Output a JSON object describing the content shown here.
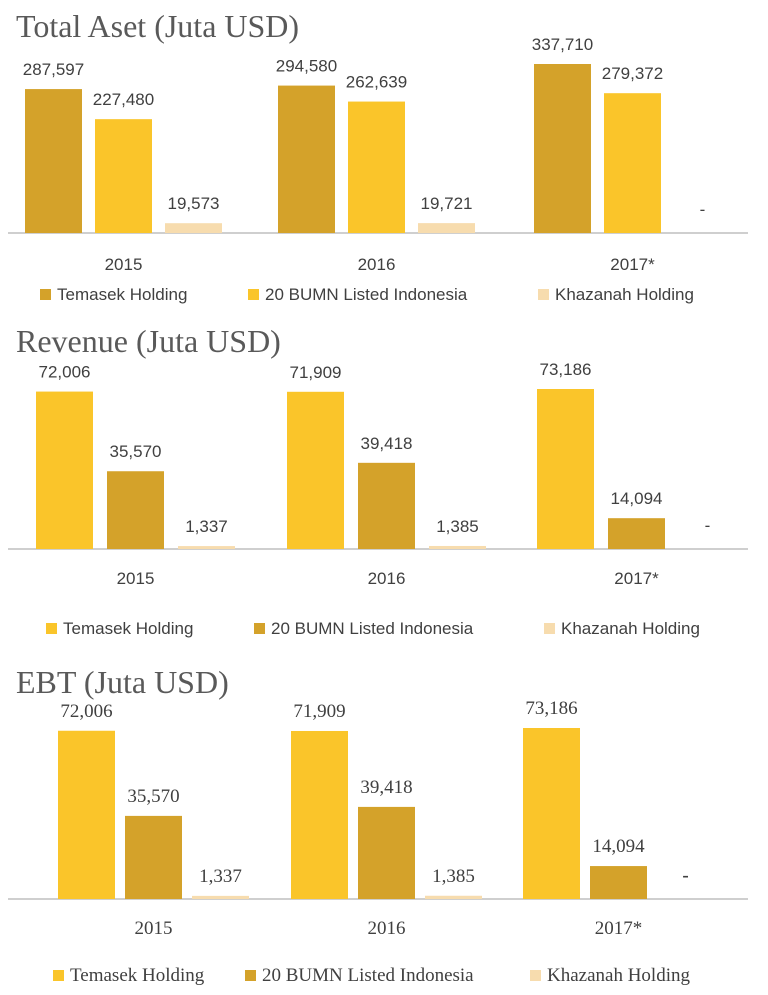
{
  "colors": {
    "temasek_panel1": "#d4a22a",
    "bumn_panel1": "#fac52a",
    "khazanah": "#f7dcae",
    "temasek_panel23": "#fac52a",
    "bumn_panel23": "#d4a22a"
  },
  "chart_data": [
    {
      "type": "bar",
      "title": "Total Aset (Juta USD)",
      "categories": [
        "2015",
        "2016",
        "2017*"
      ],
      "ylim": [
        0,
        360000
      ],
      "series": [
        {
          "name": "Temasek Holding",
          "values": [
            287597,
            294580,
            337710
          ],
          "labels": [
            "287,597",
            "294,580",
            "337,710"
          ]
        },
        {
          "name": "20  BUMN Listed Indonesia",
          "values": [
            227480,
            262639,
            279372
          ],
          "labels": [
            "227,480",
            "262,639",
            "279,372"
          ]
        },
        {
          "name": "Khazanah Holding",
          "values": [
            19573,
            19721,
            0
          ],
          "labels": [
            "19,573",
            "19,721",
            "-"
          ]
        }
      ],
      "legend": "bottom"
    },
    {
      "type": "bar",
      "title": "Revenue (Juta USD)",
      "categories": [
        "2015",
        "2016",
        "2017*"
      ],
      "ylim": [
        0,
        80000
      ],
      "series": [
        {
          "name": "Temasek Holding",
          "values": [
            72006,
            71909,
            73186
          ],
          "labels": [
            "72,006",
            "71,909",
            "73,186"
          ]
        },
        {
          "name": "20  BUMN Listed Indonesia",
          "values": [
            35570,
            39418,
            14094
          ],
          "labels": [
            "35,570",
            "39,418",
            "14,094"
          ]
        },
        {
          "name": "Khazanah Holding",
          "values": [
            1337,
            1385,
            0
          ],
          "labels": [
            "1,337",
            "1,385",
            "-"
          ]
        }
      ],
      "legend": "bottom"
    },
    {
      "type": "bar",
      "title": "EBT (Juta USD)",
      "categories": [
        "2015",
        "2016",
        "2017*"
      ],
      "ylim": [
        0,
        80000
      ],
      "series": [
        {
          "name": "Temasek Holding",
          "values": [
            72006,
            71909,
            73186
          ],
          "labels": [
            "72,006",
            "71,909",
            "73,186"
          ]
        },
        {
          "name": "20  BUMN Listed Indonesia",
          "values": [
            35570,
            39418,
            14094
          ],
          "labels": [
            "35,570",
            "39,418",
            "14,094"
          ]
        },
        {
          "name": "Khazanah Holding",
          "values": [
            1337,
            1385,
            0
          ],
          "labels": [
            "1,337",
            "1,385",
            "-"
          ]
        }
      ],
      "legend": "bottom"
    }
  ]
}
